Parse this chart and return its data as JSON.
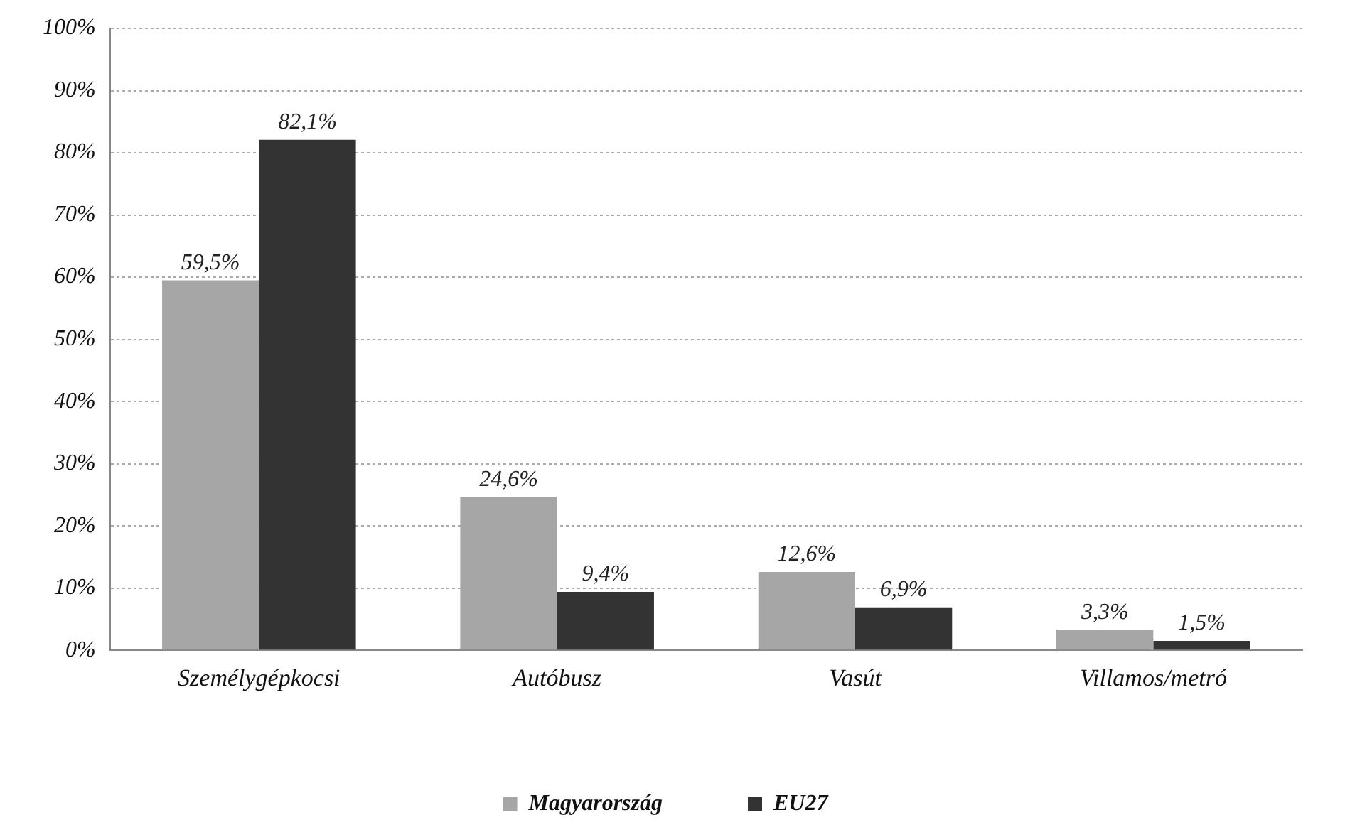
{
  "chart_data": {
    "type": "bar",
    "categories": [
      "Személygépkocsi",
      "Autóbusz",
      "Vasút",
      "Villamos/metró"
    ],
    "series": [
      {
        "name": "Magyarország",
        "color": "#a6a6a6",
        "values": [
          59.5,
          24.6,
          12.6,
          3.3
        ],
        "value_labels": [
          "59,5%",
          "24,6%",
          "12,6%",
          "3,3%"
        ]
      },
      {
        "name": "EU27",
        "color": "#333333",
        "values": [
          82.1,
          9.4,
          6.9,
          1.5
        ],
        "value_labels": [
          "82,1%",
          "9,4%",
          "6,9%",
          "1,5%"
        ]
      }
    ],
    "ylim": [
      0,
      100
    ],
    "yticks": [
      {
        "value": 0,
        "label": "0%"
      },
      {
        "value": 10,
        "label": "10%"
      },
      {
        "value": 20,
        "label": "20%"
      },
      {
        "value": 30,
        "label": "30%"
      },
      {
        "value": 40,
        "label": "40%"
      },
      {
        "value": 50,
        "label": "50%"
      },
      {
        "value": 60,
        "label": "60%"
      },
      {
        "value": 70,
        "label": "70%"
      },
      {
        "value": 80,
        "label": "80%"
      },
      {
        "value": 90,
        "label": "90%"
      },
      {
        "value": 100,
        "label": "100%"
      }
    ],
    "grid": "y",
    "legend": "bottom"
  }
}
